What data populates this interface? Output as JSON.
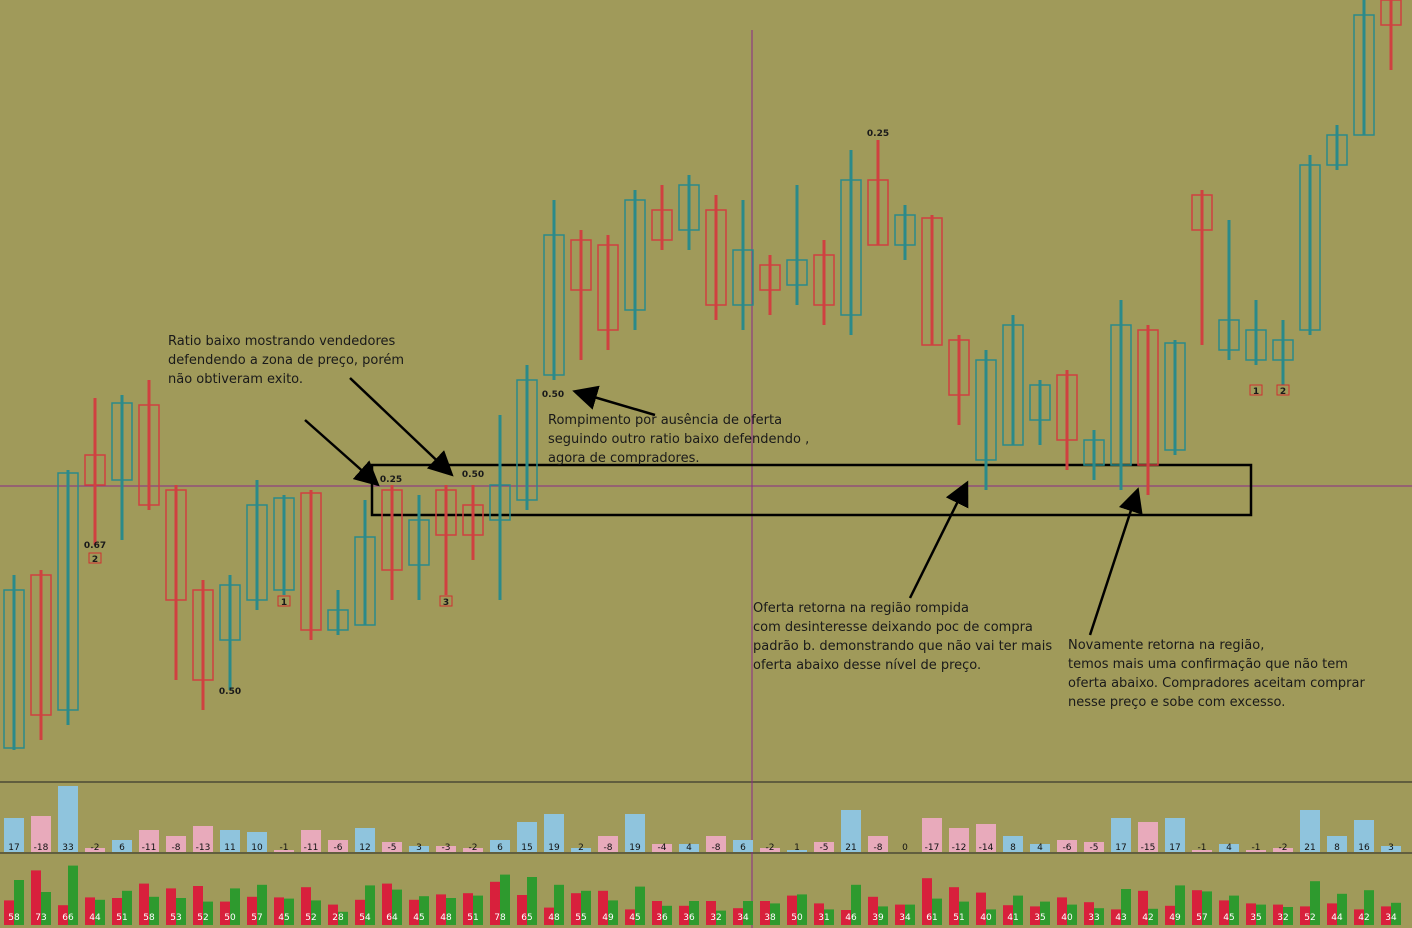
{
  "chart_data": {
    "type": "candlestick",
    "ylim": [
      0,
      780
    ],
    "open": [
      32,
      205,
      70,
      325,
      300,
      375,
      290,
      190,
      140,
      180,
      190,
      287,
      150,
      155,
      290,
      215,
      290,
      275,
      260,
      280,
      405,
      540,
      535,
      470,
      570,
      550,
      570,
      475,
      515,
      495,
      525,
      465,
      600,
      535,
      562,
      440,
      320,
      335,
      360,
      405,
      315,
      315,
      450,
      330,
      585,
      430,
      420,
      420,
      450,
      615,
      645,
      780
    ],
    "high": [
      205,
      210,
      310,
      382,
      385,
      400,
      295,
      200,
      205,
      300,
      285,
      290,
      190,
      280,
      295,
      285,
      295,
      295,
      365,
      415,
      580,
      550,
      545,
      590,
      595,
      605,
      585,
      580,
      525,
      595,
      540,
      630,
      640,
      575,
      565,
      445,
      430,
      465,
      400,
      410,
      350,
      480,
      455,
      440,
      590,
      560,
      480,
      460,
      625,
      655,
      780,
      780
    ],
    "low": [
      30,
      40,
      55,
      235,
      240,
      270,
      100,
      70,
      90,
      170,
      185,
      140,
      145,
      155,
      180,
      180,
      185,
      220,
      180,
      270,
      400,
      420,
      430,
      450,
      530,
      530,
      460,
      450,
      465,
      475,
      455,
      445,
      535,
      520,
      435,
      355,
      290,
      335,
      335,
      310,
      300,
      290,
      285,
      325,
      435,
      420,
      415,
      395,
      445,
      610,
      645,
      710
    ],
    "close": [
      190,
      65,
      307,
      295,
      377,
      275,
      180,
      100,
      195,
      275,
      282,
      150,
      170,
      243,
      210,
      260,
      245,
      245,
      295,
      400,
      545,
      490,
      450,
      580,
      540,
      595,
      475,
      530,
      490,
      520,
      475,
      600,
      535,
      565,
      435,
      385,
      420,
      455,
      395,
      340,
      340,
      455,
      315,
      437,
      550,
      460,
      450,
      440,
      615,
      645,
      765,
      755
    ],
    "up_color": "#2a8a8a",
    "down_color": "#d04040",
    "ratio_labels": [
      "0.67",
      "0.25",
      "0.50",
      "0.50",
      "0.50",
      "0.25"
    ],
    "count_labels": [
      "2",
      "1",
      "3",
      "1",
      "2"
    ],
    "annotations": [
      [
        "Ratio baixo mostrando vendedores",
        "defendendo a zona de preço, porém",
        "não obtiveram exito."
      ],
      [
        "Rompimento por ausência de oferta",
        "seguindo outro ratio baixo defendendo ,",
        "agora de compradores."
      ],
      [
        "Oferta retorna na região rompida",
        "com desinteresse deixando poc de compra",
        "padrão b. demonstrando que não vai ter mais",
        "oferta abaixo desse nível de preço."
      ],
      [
        "Novamente retorna na região,",
        "temos mais uma confirmação que não tem",
        "oferta abaixo. Compradores aceitam comprar",
        "nesse preço e sobe com excesso."
      ]
    ],
    "delta": {
      "values": [
        17,
        -18,
        33,
        -2,
        6,
        -11,
        -8,
        -13,
        11,
        10,
        -1,
        -11,
        -6,
        12,
        -5,
        3,
        -3,
        -2,
        6,
        15,
        19,
        2,
        -8,
        19,
        -4,
        4,
        -8,
        6,
        -2,
        1,
        -5,
        21,
        -8,
        0,
        -17,
        -12,
        -14,
        8,
        4,
        -6,
        -5,
        17,
        -15,
        17,
        -1,
        4,
        -1,
        -2,
        21,
        8,
        16,
        3
      ],
      "positive_color": "#8fc4dd",
      "negative_color": "#e8aabb"
    },
    "volume": {
      "values": [
        58,
        73,
        66,
        44,
        51,
        58,
        53,
        52,
        50,
        57,
        45,
        52,
        28,
        54,
        64,
        45,
        48,
        51,
        78,
        65,
        48,
        55,
        49,
        45,
        36,
        36,
        32,
        34,
        38,
        50,
        31,
        46,
        39,
        34,
        61,
        51,
        40,
        41,
        35,
        40,
        33,
        43,
        42,
        49,
        57,
        45,
        35,
        32,
        52,
        44,
        42,
        34
      ],
      "buy_color": "#2e9a2e",
      "sell_color": "#d8203c"
    }
  }
}
